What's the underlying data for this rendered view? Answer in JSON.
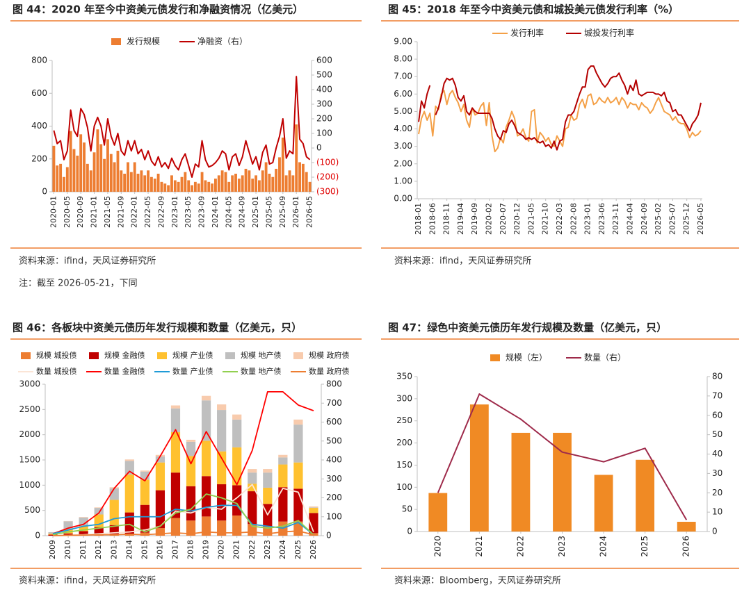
{
  "chart_data": [
    {
      "type": "combo",
      "title": "图 44：2020 年至今中资美元债发行和净融资情况（亿美元）",
      "source": "资料来源：ifind，天风证券研究所",
      "note": "注：截至 2026-05-21，下同",
      "categories": [
        "2020-01",
        null,
        null,
        null,
        "2020-05",
        null,
        null,
        null,
        "2020-09",
        null,
        null,
        null,
        "2021-01",
        null,
        null,
        null,
        "2021-05",
        null,
        null,
        null,
        "2021-09",
        null,
        null,
        null,
        "2022-01",
        null,
        null,
        null,
        "2022-05",
        null,
        null,
        null,
        "2022-09",
        null,
        null,
        null,
        "2023-01",
        null,
        null,
        null,
        "2023-05",
        null,
        null,
        null,
        "2023-09",
        null,
        null,
        null,
        "2024-01",
        null,
        null,
        null,
        "2024-05",
        null,
        null,
        null,
        "2024-09",
        null,
        null,
        null,
        "2025-01",
        null,
        null,
        null,
        "2025-05",
        null,
        null,
        null,
        "2025-09",
        null,
        null,
        null,
        "2026-01",
        null,
        null,
        null,
        "2026-05"
      ],
      "series": [
        {
          "name": "发行规模",
          "type": "bar",
          "color": "#ED7D31",
          "values": [
            280,
            160,
            170,
            90,
            150,
            370,
            260,
            220,
            350,
            300,
            170,
            130,
            240,
            380,
            290,
            200,
            320,
            230,
            180,
            250,
            130,
            110,
            180,
            120,
            180,
            110,
            130,
            100,
            130,
            90,
            80,
            110,
            60,
            50,
            40,
            100,
            70,
            60,
            90,
            120,
            70,
            40,
            60,
            50,
            120,
            70,
            60,
            50,
            80,
            100,
            130,
            120,
            60,
            100,
            110,
            80,
            100,
            140,
            130,
            80,
            100,
            70,
            130,
            180,
            110,
            90,
            140,
            210,
            330,
            100,
            130,
            100,
            410,
            180,
            170,
            120,
            60
          ]
        },
        {
          "name": "净融资（右）",
          "type": "line",
          "axis": "y2",
          "color": "#C00000",
          "values": [
            120,
            30,
            50,
            -80,
            -20,
            260,
            120,
            80,
            270,
            230,
            140,
            -20,
            150,
            210,
            150,
            20,
            200,
            80,
            20,
            100,
            -20,
            -50,
            50,
            -20,
            50,
            -40,
            -10,
            -80,
            -20,
            -90,
            -120,
            -60,
            -130,
            -100,
            -140,
            -70,
            -120,
            -150,
            -80,
            -40,
            -120,
            -200,
            -110,
            -130,
            50,
            -80,
            -130,
            -120,
            -100,
            -70,
            -20,
            -40,
            -150,
            -60,
            -40,
            -120,
            -60,
            50,
            -30,
            -110,
            -60,
            -150,
            -30,
            20,
            -110,
            -100,
            0,
            80,
            200,
            -70,
            -20,
            -40,
            490,
            60,
            30,
            -60,
            -80
          ]
        }
      ],
      "ylim": [
        0,
        800
      ],
      "yticks": [
        0,
        200,
        400,
        600,
        800
      ],
      "y2lim": [
        -300,
        600
      ],
      "y2ticks": [
        {
          "value": -300,
          "label": "(300)"
        },
        {
          "value": -200,
          "label": "(200)"
        },
        {
          "value": -100,
          "label": "(100)"
        },
        0,
        100,
        200,
        300,
        400,
        500,
        600
      ],
      "grid": false
    },
    {
      "type": "line",
      "title": "图 45：2018 年至今中资美元债和城投美元债发行利率（%）",
      "source": "资料来源：ifind，天风证券研究所",
      "categories": [
        "2018-01",
        null,
        null,
        null,
        null,
        "2018-06",
        null,
        null,
        null,
        null,
        "2018-11",
        null,
        null,
        null,
        null,
        "2019-04",
        null,
        null,
        null,
        null,
        "2019-09",
        null,
        null,
        null,
        null,
        "2020-02",
        null,
        null,
        null,
        null,
        "2020-07",
        null,
        null,
        null,
        null,
        "2020-12",
        null,
        null,
        null,
        null,
        "2021-05",
        null,
        null,
        null,
        null,
        "2021-10",
        null,
        null,
        null,
        null,
        "2022-03",
        null,
        null,
        null,
        null,
        "2022-08",
        null,
        null,
        null,
        null,
        "2023-01",
        null,
        null,
        null,
        null,
        "2023-06",
        null,
        null,
        null,
        null,
        "2023-11",
        null,
        null,
        null,
        null,
        "2024-04",
        null,
        null,
        null,
        null,
        "2024-09",
        null,
        null,
        null,
        null,
        "2025-02",
        null,
        null,
        null,
        null,
        "2025-07",
        null,
        null,
        null,
        null,
        "2025-12",
        null,
        null,
        null,
        null,
        "2026-05"
      ],
      "series": [
        {
          "name": "发行利率",
          "color": "#F4A047",
          "values": [
            3.7,
            4.6,
            5.0,
            4.5,
            4.9,
            3.6,
            5.3,
            5.1,
            6.0,
            6.2,
            5.4,
            6.0,
            6.2,
            5.8,
            5.5,
            5.0,
            5.4,
            4.5,
            4.1,
            5.2,
            4.8,
            4.9,
            5.3,
            5.5,
            4.2,
            5.5,
            3.6,
            2.7,
            2.9,
            3.5,
            3.2,
            4.1,
            4.5,
            5.0,
            4.6,
            3.6,
            3.7,
            4.0,
            3.5,
            3.3,
            5.0,
            5.1,
            3.2,
            3.8,
            3.6,
            3.3,
            3.5,
            3.1,
            3.0,
            3.6,
            3.3,
            3.0,
            4.0,
            4.1,
            4.8,
            4.5,
            4.6,
            5.4,
            5.7,
            5.2,
            5.9,
            6.0,
            5.4,
            5.5,
            5.8,
            5.6,
            5.5,
            5.8,
            5.5,
            5.6,
            5.8,
            5.4,
            5.8,
            5.6,
            5.2,
            5.5,
            5.4,
            5.4,
            5.1,
            5.5,
            5.3,
            5.2,
            4.9,
            5.1,
            5.5,
            5.8,
            5.4,
            5.0,
            4.9,
            4.8,
            4.5,
            4.7,
            4.4,
            4.3,
            4.3,
            4.0,
            3.5,
            3.8,
            3.6,
            3.7,
            3.9
          ]
        },
        {
          "name": "城投发行利率",
          "color": "#B40000",
          "values": [
            4.4,
            5.6,
            5.2,
            6.0,
            6.5,
            null,
            4.8,
            5.2,
            5.8,
            6.6,
            6.9,
            6.8,
            6.9,
            6.5,
            5.8,
            5.6,
            5.9,
            5.0,
            4.8,
            5.2,
            5.0,
            4.9,
            4.9,
            4.9,
            4.9,
            4.9,
            4.6,
            4.0,
            3.6,
            3.4,
            3.9,
            3.8,
            4.3,
            4.5,
            4.2,
            3.8,
            3.7,
            3.6,
            3.4,
            3.5,
            3.4,
            3.5,
            3.3,
            3.2,
            3.3,
            3.0,
            3.1,
            2.9,
            3.3,
            2.8,
            3.3,
            3.4,
            4.4,
            4.8,
            4.8,
            5.0,
            5.5,
            6.0,
            6.4,
            6.4,
            7.4,
            7.6,
            7.6,
            7.2,
            6.9,
            6.6,
            6.4,
            6.6,
            6.9,
            7.0,
            7.0,
            7.2,
            6.8,
            6.5,
            6.0,
            6.5,
            6.2,
            6.8,
            6.0,
            5.9,
            6.0,
            6.1,
            6.1,
            6.1,
            6.0,
            6.0,
            5.9,
            6.1,
            5.6,
            5.5,
            5.0,
            5.1,
            4.8,
            4.8,
            4.5,
            4.2,
            3.9,
            4.3,
            4.5,
            4.8,
            5.5
          ]
        }
      ],
      "ylim": [
        0,
        9
      ],
      "yticks": [
        {
          "value": 0,
          "label": "0.00"
        },
        {
          "value": 1,
          "label": "1.00"
        },
        {
          "value": 2,
          "label": "2.00"
        },
        {
          "value": 3,
          "label": "3.00"
        },
        {
          "value": 4,
          "label": "4.00"
        },
        {
          "value": 5,
          "label": "5.00"
        },
        {
          "value": 6,
          "label": "6.00"
        },
        {
          "value": 7,
          "label": "7.00"
        },
        {
          "value": 8,
          "label": "8.00"
        },
        {
          "value": 9,
          "label": "9.00"
        }
      ],
      "grid": false
    },
    {
      "type": "combo",
      "title": "图 46：各板块中资美元债历年发行规模和数量（亿美元，只）",
      "source": "资料来源：ifind，天风证券研究所",
      "stacked": true,
      "categories": [
        "2009",
        "2010",
        "2011",
        "2012",
        "2013",
        "2014",
        "2015",
        "2016",
        "2017",
        "2018",
        "2019",
        "2020",
        "2021",
        "2022",
        "2023",
        "2024",
        "2025",
        "2026"
      ],
      "series": [
        {
          "name": "规模 城投债",
          "type": "bar",
          "color": "#ED7D31",
          "values": [
            0,
            5,
            10,
            20,
            30,
            40,
            60,
            150,
            350,
            300,
            380,
            300,
            400,
            230,
            180,
            280,
            280,
            50
          ]
        },
        {
          "name": "规模 金融债",
          "type": "bar",
          "color": "#C00000",
          "values": [
            20,
            40,
            80,
            150,
            180,
            420,
            550,
            750,
            900,
            680,
            800,
            720,
            600,
            650,
            450,
            680,
            650,
            400
          ]
        },
        {
          "name": "规模 产业债",
          "type": "bar",
          "color": "#FFC12F",
          "values": [
            20,
            80,
            100,
            250,
            500,
            750,
            500,
            550,
            800,
            600,
            700,
            650,
            750,
            150,
            320,
            450,
            520,
            100
          ]
        },
        {
          "name": "规模 地产债",
          "type": "bar",
          "color": "#BFBFBF",
          "values": [
            30,
            160,
            170,
            130,
            230,
            270,
            160,
            120,
            470,
            280,
            800,
            820,
            550,
            220,
            300,
            140,
            750,
            10
          ]
        },
        {
          "name": "规模 政府债",
          "type": "bar",
          "color": "#F8CBAD",
          "values": [
            0,
            5,
            10,
            10,
            20,
            30,
            20,
            30,
            60,
            40,
            90,
            110,
            100,
            70,
            70,
            50,
            100,
            20
          ]
        },
        {
          "name": "数量 城投债",
          "type": "line",
          "axis": "y2",
          "color": "#FBE5D6",
          "values": [
            0,
            2,
            5,
            10,
            15,
            20,
            30,
            50,
            130,
            120,
            150,
            140,
            200,
            270,
            110,
            250,
            230,
            20
          ]
        },
        {
          "name": "数量 金融债",
          "type": "line",
          "axis": "y2",
          "color": "#FF0000",
          "values": [
            10,
            40,
            60,
            120,
            250,
            340,
            290,
            420,
            560,
            380,
            550,
            410,
            270,
            450,
            760,
            760,
            690,
            660
          ]
        },
        {
          "name": "数量 产业债",
          "type": "line",
          "axis": "y2",
          "color": "#1F9BD7",
          "values": [
            10,
            30,
            50,
            60,
            90,
            100,
            100,
            100,
            140,
            130,
            150,
            160,
            160,
            60,
            50,
            40,
            70,
            5
          ]
        },
        {
          "name": "数量 地产债",
          "type": "line",
          "axis": "y2",
          "color": "#92D050",
          "values": [
            5,
            20,
            30,
            40,
            50,
            60,
            20,
            50,
            120,
            140,
            220,
            200,
            170,
            50,
            40,
            50,
            80,
            5
          ]
        },
        {
          "name": "数量 政府债",
          "type": "line",
          "axis": "y2",
          "color": "#ED7D31",
          "values": [
            0,
            2,
            3,
            5,
            5,
            8,
            5,
            10,
            15,
            10,
            20,
            15,
            15,
            20,
            10,
            20,
            25,
            5
          ]
        }
      ],
      "ylim": [
        0,
        3000
      ],
      "yticks": [
        0,
        500,
        1000,
        1500,
        2000,
        2500,
        3000
      ],
      "y2lim": [
        0,
        800
      ],
      "y2ticks": [
        0,
        100,
        200,
        300,
        400,
        500,
        600,
        700,
        800
      ],
      "grid": false
    },
    {
      "type": "combo",
      "title": "图 47：绿色中资美元债历年发行规模及数量（亿美元，只）",
      "source": "资料来源：Bloomberg，天风证券研究所",
      "categories": [
        "2020",
        "2021",
        "2022",
        "2023",
        "2024",
        "2025",
        "2026"
      ],
      "series": [
        {
          "name": "规模（左）",
          "type": "bar",
          "color": "#F08A24",
          "values": [
            87,
            287,
            223,
            223,
            128,
            162,
            22
          ]
        },
        {
          "name": "数量（右）",
          "type": "line",
          "axis": "y2",
          "color": "#9E2A4A",
          "values": [
            20,
            71,
            58,
            41,
            36,
            43,
            6
          ]
        }
      ],
      "ylim": [
        0,
        350
      ],
      "yticks": [
        0,
        50,
        100,
        150,
        200,
        250,
        300,
        350
      ],
      "y2lim": [
        0,
        80
      ],
      "y2ticks": [
        0,
        10,
        20,
        30,
        40,
        50,
        60,
        70,
        80
      ],
      "grid": false
    }
  ]
}
